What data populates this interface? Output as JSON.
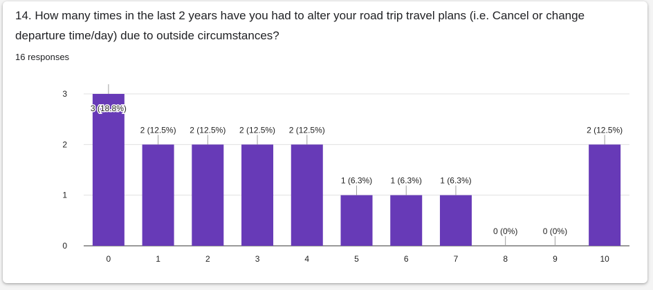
{
  "question": {
    "title": "14. How many times in the last 2 years have you had to alter your road trip travel plans (i.e. Cancel or change departure time/day) due to outside circumstances?",
    "responses": "16 responses"
  },
  "colors": {
    "bar": "#673ab7",
    "grid": "#e0e0e0",
    "axis": "#333333"
  },
  "chart_data": {
    "type": "bar",
    "categories": [
      "0",
      "1",
      "2",
      "3",
      "4",
      "5",
      "6",
      "7",
      "8",
      "9",
      "10"
    ],
    "values": [
      3,
      2,
      2,
      2,
      2,
      1,
      1,
      1,
      0,
      0,
      2
    ],
    "data_labels": [
      "3 (18.8%)",
      "2 (12.5%)",
      "2 (12.5%)",
      "2 (12.5%)",
      "2 (12.5%)",
      "1 (6.3%)",
      "1 (6.3%)",
      "1 (6.3%)",
      "0 (0%)",
      "0 (0%)",
      "2 (12.5%)"
    ],
    "yticks": [
      "0",
      "1",
      "2",
      "3"
    ],
    "ylim": [
      0,
      3
    ],
    "grid": true,
    "legend": "none",
    "title": "",
    "xlabel": "",
    "ylabel": ""
  }
}
